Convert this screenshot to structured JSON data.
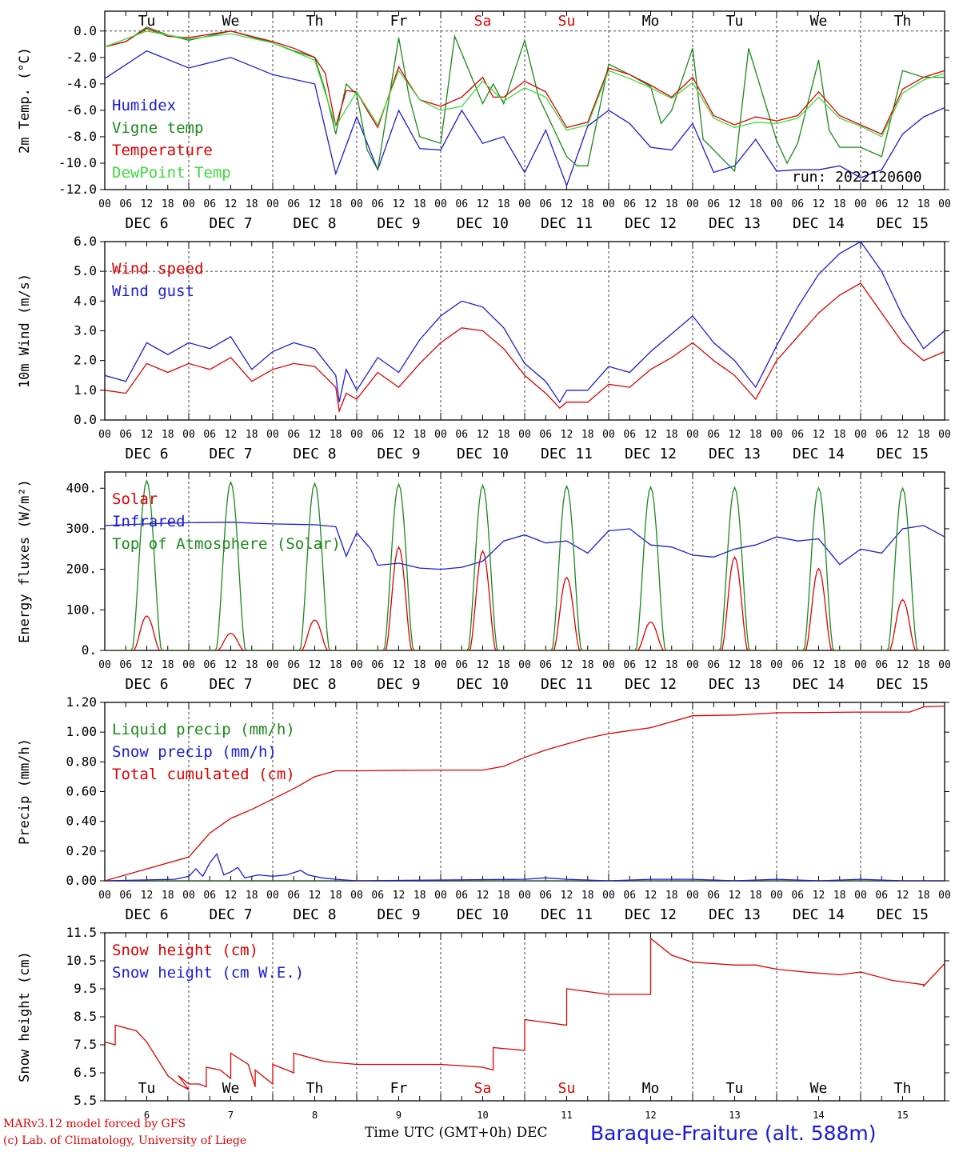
{
  "page": {
    "credit_line1": "MARv3.12 model forced by GFS",
    "credit_line2": "(c) Lab. of Climatology, University of Liege",
    "x_title": "Time UTC (GMT+0h) DEC",
    "station": "Baraque-Fraiture (alt. 588m)",
    "run_label": "run: 2022120600"
  },
  "colors": {
    "red": "#e00000",
    "green": "#1a8a1a",
    "blue": "#1c1cdc",
    "light_green": "#3cdc3c",
    "grid": "#444444"
  },
  "hour_ticks": [
    "00",
    "06",
    "12",
    "18"
  ],
  "days": [
    {
      "label": "DEC  6",
      "num": "6",
      "wd": "Tu",
      "weekend": false
    },
    {
      "label": "DEC  7",
      "num": "7",
      "wd": "We",
      "weekend": false
    },
    {
      "label": "DEC  8",
      "num": "8",
      "wd": "Th",
      "weekend": false
    },
    {
      "label": "DEC  9",
      "num": "9",
      "wd": "Fr",
      "weekend": false
    },
    {
      "label": "DEC 10",
      "num": "10",
      "wd": "Sa",
      "weekend": true
    },
    {
      "label": "DEC 11",
      "num": "11",
      "wd": "Su",
      "weekend": true
    },
    {
      "label": "DEC 12",
      "num": "12",
      "wd": "Mo",
      "weekend": false
    },
    {
      "label": "DEC 13",
      "num": "13",
      "wd": "Tu",
      "weekend": false
    },
    {
      "label": "DEC 14",
      "num": "14",
      "wd": "We",
      "weekend": false
    },
    {
      "label": "DEC 15",
      "num": "15",
      "wd": "Th",
      "weekend": false
    }
  ],
  "chart_data": [
    {
      "type": "line",
      "ylabel": "2m Temp. (°C)",
      "ylim": [
        -12,
        1.5
      ],
      "yticks": [
        -12,
        -10,
        -8,
        -6,
        -4,
        -2,
        0
      ],
      "tick_labels": [
        "-12.0",
        "-10.0",
        "-8.0",
        "-6.0",
        "-4.0",
        "-2.0",
        "0.0"
      ],
      "ref_line": 0,
      "x_unit": "hours since DEC 6 00 UTC",
      "series": [
        {
          "name": "Humidex",
          "color": "blue",
          "x": [
            0,
            12,
            24,
            36,
            48,
            60,
            66,
            72,
            78,
            84,
            90,
            96,
            102,
            108,
            114,
            120,
            126,
            132,
            138,
            144,
            150,
            156,
            162,
            168,
            174,
            180,
            186,
            192,
            198,
            204,
            210,
            216,
            222,
            228,
            234,
            240
          ],
          "y": [
            -3.6,
            -1.5,
            -2.8,
            -2,
            -3.3,
            -4,
            -10.8,
            -6.5,
            -10.5,
            -6,
            -8.9,
            -9,
            -6,
            -8.5,
            -8,
            -10.7,
            -7.5,
            -11.7,
            -7.2,
            -6,
            -7,
            -8.8,
            -9,
            -7,
            -10.7,
            -10.2,
            -8.2,
            -10.6,
            -10.5,
            -10.5,
            -10.2,
            -11.1,
            -10.5,
            -7.8,
            -6.5,
            -5.8
          ]
        },
        {
          "name": "Vigne temp",
          "color": "green",
          "x": [
            0,
            6,
            12,
            18,
            24,
            36,
            48,
            54,
            60,
            63,
            66,
            69,
            72,
            75,
            78,
            84,
            87,
            90,
            96,
            100,
            108,
            111,
            114,
            120,
            124,
            132,
            135,
            138,
            144,
            150,
            156,
            159,
            162,
            168,
            171,
            174,
            180,
            184,
            192,
            195,
            198,
            204,
            207,
            210,
            216,
            222,
            228,
            234,
            240
          ],
          "y": [
            -1.2,
            -0.8,
            0.3,
            -0.3,
            -0.7,
            0,
            -0.9,
            -1.5,
            -2,
            -4.5,
            -7.8,
            -4,
            -4.8,
            -9,
            -10.5,
            -0.5,
            -5,
            -8,
            -8.5,
            -0.4,
            -5.5,
            -4,
            -5.5,
            -0.7,
            -5,
            -9.5,
            -10.2,
            -10.2,
            -2.5,
            -3.3,
            -4.2,
            -7,
            -6,
            -1.3,
            -8.2,
            -9,
            -10.6,
            -1.3,
            -8.3,
            -10,
            -8.5,
            -2.2,
            -7.5,
            -8.8,
            -8.8,
            -9.5,
            -3,
            -3.5,
            -3.5
          ]
        },
        {
          "name": "Temperature",
          "color": "red",
          "x": [
            0,
            6,
            12,
            18,
            24,
            36,
            48,
            54,
            60,
            63,
            66,
            69,
            72,
            75,
            78,
            84,
            87,
            90,
            96,
            102,
            108,
            111,
            114,
            120,
            126,
            132,
            138,
            144,
            150,
            156,
            162,
            168,
            174,
            180,
            186,
            192,
            198,
            204,
            210,
            216,
            222,
            228,
            234,
            240
          ],
          "y": [
            -1.2,
            -0.8,
            0.2,
            -0.4,
            -0.5,
            0,
            -0.8,
            -1.3,
            -2,
            -3.2,
            -7.2,
            -4.5,
            -4.6,
            -6,
            -7.3,
            -2.7,
            -4,
            -5.2,
            -5.7,
            -5,
            -3.5,
            -5,
            -5,
            -3.8,
            -4.6,
            -7.3,
            -6.9,
            -2.8,
            -3.3,
            -4.1,
            -5,
            -3.5,
            -6.4,
            -7.1,
            -6.5,
            -6.8,
            -6.4,
            -4.6,
            -6.4,
            -7.1,
            -7.8,
            -4.4,
            -3.5,
            -3
          ]
        },
        {
          "name": "DewPoint Temp",
          "color": "light_green",
          "x": [
            0,
            12,
            24,
            36,
            48,
            60,
            66,
            72,
            78,
            84,
            90,
            96,
            102,
            108,
            114,
            120,
            126,
            132,
            138,
            144,
            150,
            156,
            162,
            168,
            174,
            180,
            186,
            192,
            198,
            204,
            210,
            216,
            222,
            228,
            234,
            240
          ],
          "y": [
            -1.2,
            0,
            -0.6,
            -0.2,
            -0.9,
            -2.2,
            -7.2,
            -4.6,
            -7.1,
            -3,
            -5.2,
            -6,
            -5.7,
            -3.8,
            -5.3,
            -4.3,
            -5,
            -7.5,
            -7.1,
            -3,
            -3.6,
            -4.3,
            -5.1,
            -3.9,
            -6.6,
            -7.3,
            -6.9,
            -7,
            -6.6,
            -5,
            -6.6,
            -7.2,
            -8,
            -4.7,
            -3.7,
            -3.2
          ]
        }
      ]
    },
    {
      "type": "line",
      "ylabel": "10m Wind (m/s)",
      "ylim": [
        0,
        6
      ],
      "yticks": [
        0,
        1,
        2,
        3,
        4,
        5,
        6
      ],
      "tick_labels": [
        "0.0",
        "1.0",
        "2.0",
        "3.0",
        "4.0",
        "5.0",
        "6.0"
      ],
      "ref_line": 5,
      "x_unit": "hours since DEC 6 00 UTC",
      "series": [
        {
          "name": "Wind speed",
          "color": "red",
          "x": [
            0,
            6,
            12,
            18,
            24,
            30,
            36,
            42,
            48,
            54,
            60,
            66,
            67,
            69,
            72,
            78,
            84,
            90,
            96,
            102,
            108,
            114,
            120,
            126,
            130,
            132,
            138,
            144,
            150,
            156,
            162,
            168,
            174,
            180,
            186,
            192,
            198,
            204,
            210,
            216,
            222,
            228,
            234,
            240
          ],
          "y": [
            1,
            0.9,
            1.9,
            1.6,
            1.9,
            1.7,
            2.1,
            1.3,
            1.7,
            1.9,
            1.8,
            1.1,
            0.3,
            0.9,
            0.7,
            1.6,
            1.1,
            1.9,
            2.6,
            3.1,
            3,
            2.4,
            1.5,
            0.9,
            0.4,
            0.6,
            0.6,
            1.2,
            1.1,
            1.7,
            2.1,
            2.6,
            2,
            1.5,
            0.7,
            2,
            2.8,
            3.6,
            4.2,
            4.6,
            3.6,
            2.6,
            2,
            2.3
          ]
        },
        {
          "name": "Wind gust",
          "color": "blue",
          "x": [
            0,
            6,
            12,
            18,
            24,
            30,
            36,
            42,
            48,
            54,
            60,
            66,
            67,
            69,
            72,
            78,
            84,
            90,
            96,
            102,
            108,
            114,
            120,
            126,
            130,
            132,
            138,
            144,
            150,
            156,
            162,
            168,
            174,
            180,
            186,
            192,
            198,
            204,
            210,
            216,
            222,
            228,
            234,
            240
          ],
          "y": [
            1.5,
            1.3,
            2.6,
            2.2,
            2.6,
            2.4,
            2.8,
            1.7,
            2.3,
            2.6,
            2.4,
            1.5,
            0.6,
            1.7,
            1,
            2.1,
            1.6,
            2.7,
            3.5,
            4,
            3.8,
            3.1,
            1.9,
            1.3,
            0.6,
            1,
            1,
            1.8,
            1.6,
            2.3,
            2.9,
            3.5,
            2.6,
            2,
            1.1,
            2.5,
            3.8,
            4.9,
            5.6,
            6,
            5,
            3.5,
            2.4,
            3
          ]
        }
      ]
    },
    {
      "type": "line",
      "ylabel": "Energy fluxes (W/m²)",
      "ylim": [
        0,
        440
      ],
      "yticks": [
        0,
        100,
        200,
        300,
        400
      ],
      "tick_labels": [
        "0.",
        "100.",
        "200.",
        "300.",
        "400."
      ],
      "x_unit": "hours since DEC 6 00 UTC",
      "daily_curves": {
        "top_of_atmosphere_peaks": [
          418,
          415,
          412,
          410,
          407,
          405,
          403,
          402,
          401,
          400
        ],
        "solar_peaks": [
          85,
          42,
          75,
          255,
          245,
          180,
          70,
          230,
          202,
          125
        ]
      },
      "series": [
        {
          "name": "Solar",
          "color": "red"
        },
        {
          "name": "Infrared",
          "color": "blue",
          "x": [
            0,
            12,
            24,
            36,
            48,
            60,
            66,
            69,
            72,
            76,
            78,
            84,
            90,
            96,
            102,
            108,
            114,
            120,
            126,
            132,
            138,
            144,
            150,
            156,
            162,
            168,
            174,
            180,
            186,
            192,
            198,
            204,
            210,
            216,
            222,
            228,
            234,
            240
          ],
          "y": [
            308,
            312,
            315,
            316,
            312,
            310,
            305,
            232,
            290,
            250,
            210,
            215,
            203,
            200,
            205,
            220,
            270,
            285,
            265,
            270,
            240,
            295,
            300,
            260,
            255,
            235,
            230,
            250,
            260,
            280,
            270,
            275,
            212,
            250,
            240,
            300,
            308,
            280
          ]
        },
        {
          "name": "Top of Atmosphere (Solar)",
          "color": "green"
        }
      ]
    },
    {
      "type": "line",
      "ylabel": "Precip (mm/h)",
      "ylim": [
        0,
        1.2
      ],
      "yticks": [
        0,
        0.2,
        0.4,
        0.6,
        0.8,
        1.0,
        1.2
      ],
      "tick_labels": [
        "0.00",
        "0.20",
        "0.40",
        "0.60",
        "0.80",
        "1.00",
        "1.20"
      ],
      "x_unit": "hours since DEC 6 00 UTC",
      "series": [
        {
          "name": "Liquid precip (mm/h)",
          "color": "green",
          "x": [
            0,
            240
          ],
          "y": [
            0,
            0
          ]
        },
        {
          "name": "Snow precip (mm/h)",
          "color": "blue",
          "x": [
            0,
            20,
            24,
            26,
            28,
            30,
            32,
            34,
            36,
            38,
            40,
            44,
            48,
            52,
            56,
            58,
            62,
            66,
            72,
            120,
            126,
            132,
            144,
            156,
            168,
            180,
            192,
            204,
            216,
            228,
            240
          ],
          "y": [
            0,
            0.01,
            0.03,
            0.08,
            0.03,
            0.12,
            0.18,
            0.04,
            0.06,
            0.09,
            0.02,
            0.04,
            0.03,
            0.04,
            0.07,
            0.04,
            0.02,
            0.01,
            0,
            0.01,
            0.02,
            0.01,
            0,
            0.01,
            0.01,
            0,
            0.01,
            0,
            0.01,
            0,
            0
          ]
        },
        {
          "name": "Total cumulated (cm)",
          "color": "red",
          "x": [
            0,
            12,
            24,
            30,
            36,
            42,
            48,
            54,
            60,
            66,
            72,
            96,
            108,
            114,
            120,
            126,
            132,
            138,
            144,
            150,
            156,
            168,
            180,
            192,
            216,
            230,
            234,
            240
          ],
          "y": [
            0,
            0.08,
            0.16,
            0.32,
            0.42,
            0.48,
            0.55,
            0.62,
            0.7,
            0.74,
            0.74,
            0.745,
            0.745,
            0.77,
            0.83,
            0.88,
            0.92,
            0.96,
            0.99,
            1.01,
            1.03,
            1.11,
            1.115,
            1.13,
            1.135,
            1.135,
            1.17,
            1.175
          ]
        }
      ]
    },
    {
      "type": "line",
      "ylabel": "Snow height (cm)",
      "ylim": [
        5.5,
        11.5
      ],
      "yticks": [
        5.5,
        6.5,
        7.5,
        8.5,
        9.5,
        10.5,
        11.5
      ],
      "tick_labels": [
        "5.5",
        "6.5",
        "7.5",
        "8.5",
        "9.5",
        "10.5",
        "11.5"
      ],
      "x_unit": "hours since DEC 6 00 UTC",
      "series": [
        {
          "name": "Snow height (cm)",
          "color": "red",
          "x": [
            0,
            3,
            3,
            6,
            9,
            12,
            15,
            18,
            21,
            24,
            21,
            23,
            24,
            27,
            29,
            29,
            33,
            36,
            36,
            41,
            43,
            43,
            48,
            48,
            54,
            54,
            63,
            72,
            96,
            108,
            111,
            111,
            120,
            120,
            132,
            132,
            138,
            138,
            144,
            150,
            156,
            156,
            162,
            168,
            174,
            180,
            186,
            192,
            200,
            210,
            216,
            225,
            234,
            234,
            240
          ],
          "y": [
            7.6,
            7.5,
            8.2,
            8.1,
            8,
            7.6,
            7,
            6.4,
            6.1,
            5.9,
            6.4,
            6.2,
            6.1,
            6.1,
            6,
            6.7,
            6.6,
            6.3,
            7.2,
            6.8,
            6,
            6.6,
            6.1,
            6.8,
            6.5,
            7.2,
            6.9,
            6.8,
            6.8,
            6.7,
            6.6,
            7.4,
            7.3,
            8.4,
            8.2,
            9.5,
            9.4,
            9.4,
            9.3,
            9.3,
            9.3,
            11.3,
            10.7,
            10.45,
            10.4,
            10.35,
            10.35,
            10.2,
            10.1,
            10,
            10.1,
            9.8,
            9.65,
            9.6,
            10.4
          ]
        },
        {
          "name": "Snow height (cm W.E.)",
          "color": "blue",
          "x": [],
          "y": []
        }
      ]
    }
  ]
}
